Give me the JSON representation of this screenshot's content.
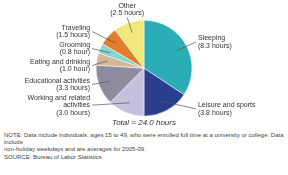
{
  "chart_data": {
    "type": "pie",
    "subtitle": "Total = 24.0 hours",
    "categories": [
      "Sleeping",
      "Leisure and sports",
      "Working and related\nactivities",
      "Educational activities",
      "Eating and drinking",
      "Grooming",
      "Traveling",
      "Other"
    ],
    "values": [
      8.3,
      3.8,
      3.0,
      3.3,
      1.0,
      0.8,
      1.5,
      2.5
    ],
    "value_labels": [
      "(8.3 hours)",
      "(3.8 hours)",
      "(3.0 hours)",
      "(3.3 hours)",
      "(1.0 hour)",
      "(0.8 hour)",
      "(1.5 hours)",
      "(2.5 hours)"
    ],
    "data_labels": true,
    "colors": [
      "#2badb5",
      "#2b3d8f",
      "#c5c0dc",
      "#8c8c9e",
      "#d4b896",
      "#88d4d4",
      "#e07c2a",
      "#f0e87c"
    ],
    "annotations": [
      "NOTE: Data include individuals, ages 15 to 49, who were enrolled full time at a university or college. Data include\nnon-holiday weekdays and are averages for 2005-09.",
      "SOURCE: Bureau of Labor Statistics"
    ]
  }
}
